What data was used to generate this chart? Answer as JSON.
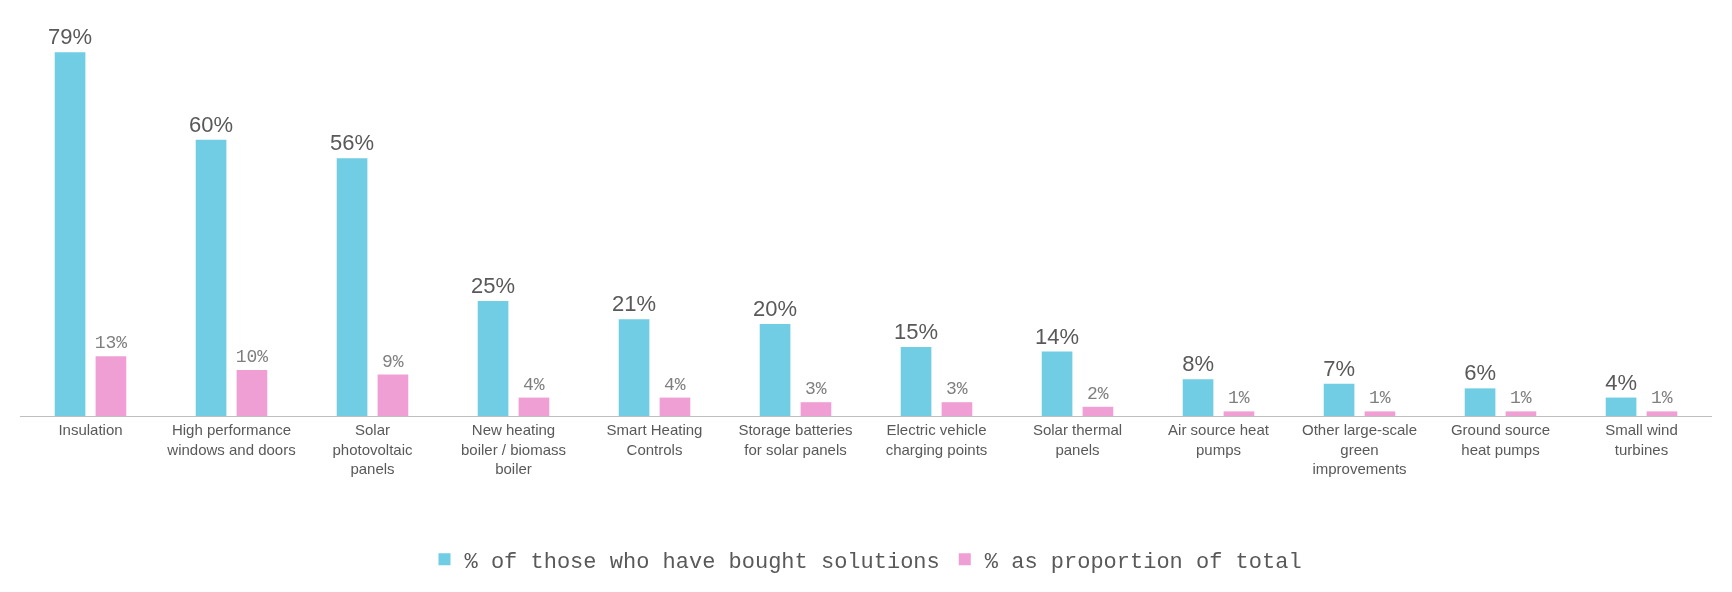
{
  "chart_data": {
    "type": "bar",
    "categories": [
      "Insulation",
      "High performance windows and doors",
      "Solar photovoltaic panels",
      "New heating boiler / biomass boiler",
      "Smart Heating Controls",
      "Storage batteries for solar panels",
      "Electric vehicle charging points",
      "Solar thermal panels",
      "Air source heat pumps",
      "Other large-scale green improvements",
      "Ground source heat pumps",
      "Small wind turbines"
    ],
    "series": [
      {
        "name": "% of those who have bought solutions",
        "color": "#70cde3",
        "values": [
          79,
          60,
          56,
          25,
          21,
          20,
          15,
          14,
          8,
          7,
          6,
          4
        ],
        "value_labels": [
          "79%",
          "60%",
          "56%",
          "25%",
          "21%",
          "20%",
          "15%",
          "14%",
          "8%",
          "7%",
          "6%",
          "4%"
        ]
      },
      {
        "name": "% as proportion of total",
        "color": "#f09fd5",
        "values": [
          13,
          10,
          9,
          4,
          4,
          3,
          3,
          2,
          1,
          1,
          1,
          1
        ],
        "value_labels": [
          "13%",
          "10%",
          "9%",
          "4%",
          "4%",
          "3%",
          "3%",
          "2%",
          "1%",
          "1%",
          "1%",
          "1%"
        ]
      }
    ],
    "legend": "bottom"
  }
}
